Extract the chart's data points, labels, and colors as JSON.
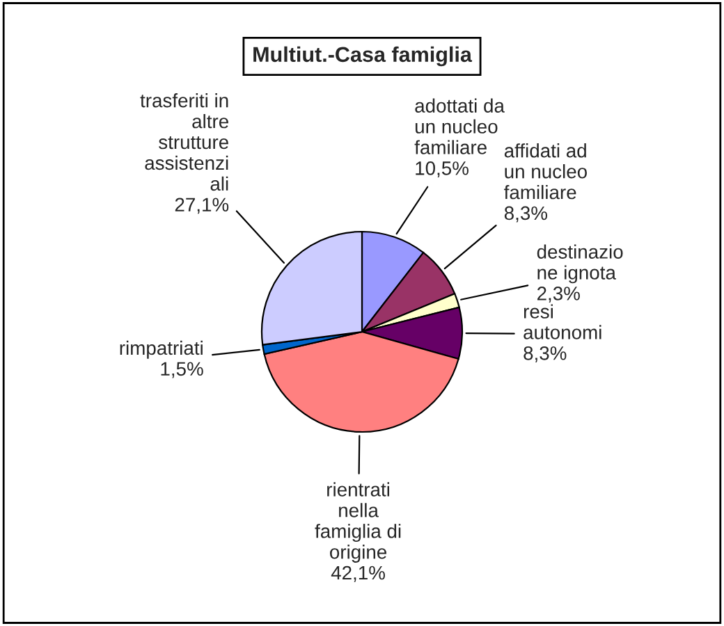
{
  "chart_data": {
    "type": "pie",
    "title": "Multiut.-Casa famiglia",
    "categories": [
      "adottati da\nun nucleo\nfamiliare",
      "affidati ad\nun nucleo\nfamiliare",
      "destinazio\nne ignota",
      "resi\nautonomi",
      "rientrati\nnella\nfamiglia di\norigine",
      "rimpatriati",
      "trasferiti in\naltre\nstrutture\nassistenzi\nali"
    ],
    "values": [
      10.5,
      8.3,
      2.3,
      8.3,
      42.1,
      1.5,
      27.1
    ],
    "value_labels": [
      "10,5%",
      "8,3%",
      "2,3%",
      "8,3%",
      "42,1%",
      "1,5%",
      "27,1%"
    ],
    "colors": [
      "#9999ff",
      "#993366",
      "#ffffcc",
      "#660066",
      "#ff8080",
      "#0066cc",
      "#ccccff"
    ],
    "legend": false
  }
}
